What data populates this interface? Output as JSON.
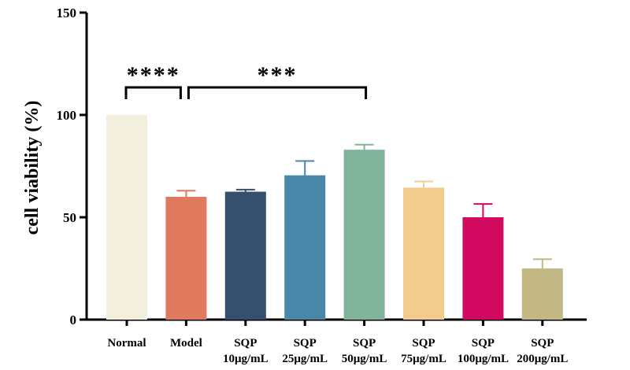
{
  "chart_data": {
    "type": "bar",
    "title": "",
    "xlabel": "",
    "ylabel": "cell viability (%)",
    "ylim": [
      0,
      150
    ],
    "yticks": [
      0,
      50,
      100,
      150
    ],
    "grid": false,
    "categories": [
      {
        "line1": "Normal",
        "line2": ""
      },
      {
        "line1": "Model",
        "line2": ""
      },
      {
        "line1": "SQP",
        "line2": "10μg/mL"
      },
      {
        "line1": "SQP",
        "line2": "25μg/mL"
      },
      {
        "line1": "SQP",
        "line2": "50μg/mL"
      },
      {
        "line1": "SQP",
        "line2": "75μg/mL"
      },
      {
        "line1": "SQP",
        "line2": "100μg/mL"
      },
      {
        "line1": "SQP",
        "line2": "200μg/mL"
      }
    ],
    "values": [
      100,
      60,
      62.5,
      70.5,
      83,
      64.5,
      50,
      25
    ],
    "errors": [
      0,
      3,
      1,
      7,
      2.5,
      3,
      6.5,
      4.5
    ],
    "colors": [
      "#f3efdd",
      "#e07a5f",
      "#34506e",
      "#4a86a8",
      "#81b29a",
      "#f2cc8f",
      "#d1095f",
      "#c2b883"
    ],
    "significance": [
      {
        "from": 0,
        "to": 1,
        "label": "****"
      },
      {
        "from": 1,
        "to": 4,
        "label": "***"
      }
    ]
  }
}
